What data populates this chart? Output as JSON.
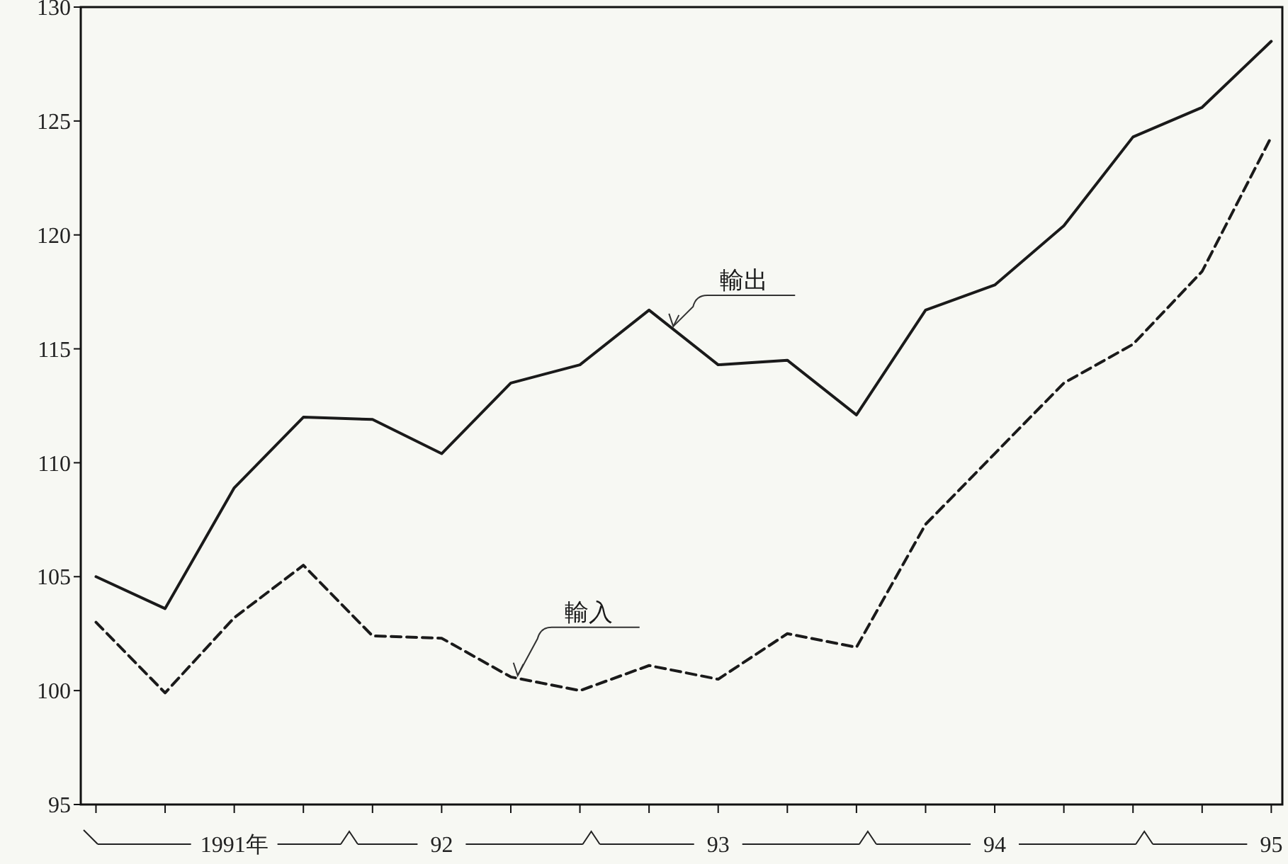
{
  "chart_data": {
    "type": "line",
    "categories": [
      null,
      null,
      "1991年",
      null,
      null,
      "92",
      null,
      null,
      null,
      "93",
      null,
      null,
      null,
      "94",
      null,
      null,
      null,
      "95"
    ],
    "series": [
      {
        "name": "輸出",
        "color": "#1a1a1a",
        "line_style": "solid",
        "values": [
          105.0,
          103.6,
          108.9,
          112.0,
          111.9,
          110.4,
          113.5,
          114.3,
          116.7,
          114.3,
          114.5,
          112.1,
          116.7,
          117.8,
          120.4,
          124.3,
          125.6,
          128.5
        ]
      },
      {
        "name": "輸入",
        "color": "#1a1a1a",
        "line_style": "dashed",
        "values": [
          103.0,
          99.9,
          103.2,
          105.5,
          102.4,
          102.3,
          100.6,
          100.0,
          101.1,
          100.5,
          102.5,
          101.9,
          107.3,
          110.4,
          113.5,
          115.2,
          118.4,
          124.3
        ]
      }
    ],
    "ylim": [
      95,
      130
    ],
    "yticks": [
      95,
      100,
      105,
      110,
      115,
      120,
      125,
      130
    ],
    "grid": false,
    "legend": false
  }
}
